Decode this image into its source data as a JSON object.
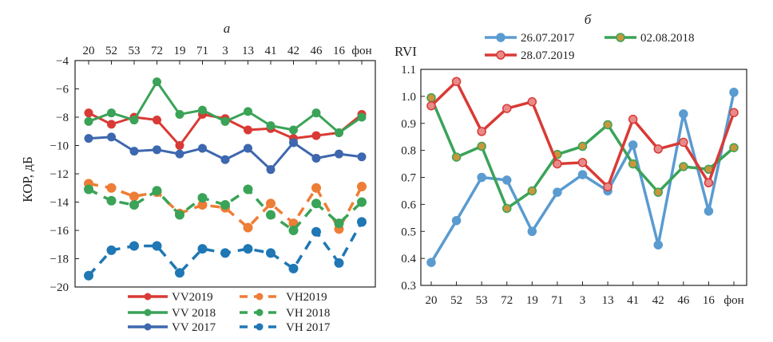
{
  "categories": [
    "20",
    "52",
    "53",
    "72",
    "19",
    "71",
    "3",
    "13",
    "41",
    "42",
    "46",
    "16",
    "фон"
  ],
  "chart_data": [
    {
      "type": "line",
      "panel_label": "а",
      "ylabel": "КОР, дБ",
      "ylim": [
        -20,
        -4
      ],
      "yticks": [
        -4,
        -6,
        -8,
        -10,
        -12,
        -14,
        -16,
        -18,
        -20
      ],
      "xaxis_position": "top",
      "legend_position": "bottom",
      "series": [
        {
          "name": "VV2019",
          "color": "#d93a35",
          "dash": false,
          "values": [
            -7.7,
            -8.5,
            -8.0,
            -8.2,
            -10.0,
            -7.8,
            -8.1,
            -8.9,
            -8.8,
            -9.5,
            -9.3,
            -9.1,
            -7.8
          ]
        },
        {
          "name": "VH2019",
          "color": "#ee7d36",
          "dash": true,
          "values": [
            -12.7,
            -13.0,
            -13.6,
            -13.3,
            -14.8,
            -14.2,
            -14.4,
            -15.8,
            -14.1,
            -15.5,
            -13.0,
            -15.9,
            -12.9
          ]
        },
        {
          "name": "VV 2018",
          "color": "#3aa357",
          "dash": false,
          "values": [
            -8.3,
            -7.7,
            -8.2,
            -5.5,
            -7.8,
            -7.5,
            -8.3,
            -7.6,
            -8.6,
            -8.9,
            -7.7,
            -9.1,
            -8.0
          ]
        },
        {
          "name": "VH 2018",
          "color": "#3aa357",
          "dash": true,
          "values": [
            -13.1,
            -13.9,
            -14.2,
            -13.2,
            -14.9,
            -13.7,
            -14.2,
            -13.1,
            -14.9,
            -16.0,
            -14.1,
            -15.5,
            -14.0
          ]
        },
        {
          "name": "VV 2017",
          "color": "#3d67ae",
          "dash": false,
          "values": [
            -9.5,
            -9.4,
            -10.4,
            -10.3,
            -10.6,
            -10.2,
            -11.0,
            -10.2,
            -11.7,
            -9.8,
            -10.9,
            -10.6,
            -10.8
          ]
        },
        {
          "name": "VH 2017",
          "color": "#1f77b4",
          "dash": true,
          "values": [
            -19.2,
            -17.4,
            -17.1,
            -17.1,
            -19.0,
            -17.3,
            -17.6,
            -17.3,
            -17.6,
            -18.7,
            -16.1,
            -18.3,
            -15.4
          ]
        }
      ]
    },
    {
      "type": "line",
      "panel_label": "б",
      "ylabel": "RVI",
      "ylim": [
        0.3,
        1.1
      ],
      "yticks": [
        1.1,
        1.0,
        0.9,
        0.8,
        0.7,
        0.6,
        0.5,
        0.4,
        0.3
      ],
      "ytick_labels": [
        "1.1",
        "1.0",
        "0.9",
        "0.8",
        "0.7",
        "0.6",
        "0.5",
        "0.4",
        "0.3"
      ],
      "xaxis_position": "bottom",
      "legend_position": "top",
      "series": [
        {
          "name": "26.07.2017",
          "color": "#5a9bd0",
          "marker_fill": "#5a9bd0",
          "values": [
            0.385,
            0.54,
            0.7,
            0.69,
            0.5,
            0.645,
            0.71,
            0.65,
            0.82,
            0.45,
            0.935,
            0.575,
            1.015
          ]
        },
        {
          "name": "02.08.2018",
          "color": "#3aa357",
          "marker_fill": "#c8963c",
          "values": [
            0.995,
            0.775,
            0.815,
            0.585,
            0.65,
            0.785,
            0.815,
            0.895,
            0.75,
            0.645,
            0.74,
            0.73,
            0.81
          ]
        },
        {
          "name": "28.07.2019",
          "color": "#d93a35",
          "marker_fill": "#e88a8a",
          "values": [
            0.965,
            1.055,
            0.87,
            0.955,
            0.98,
            0.75,
            0.755,
            0.665,
            0.915,
            0.805,
            0.83,
            0.68,
            0.94
          ]
        }
      ]
    }
  ]
}
